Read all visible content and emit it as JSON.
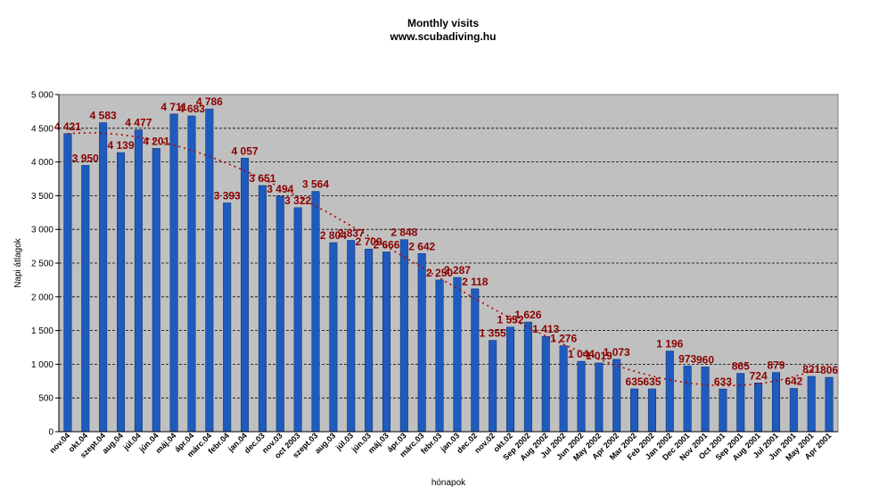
{
  "chart_data": {
    "type": "bar",
    "title": "Monthly visits",
    "subtitle": "www.scubadiving.hu",
    "xlabel": "hónapok",
    "ylabel": "Napi átlagok",
    "ylim": [
      0,
      5000
    ],
    "yticks": [
      "0",
      "500",
      "1 000",
      "1 500",
      "2 000",
      "2 500",
      "3 000",
      "3 500",
      "4 000",
      "4 500",
      "5 000"
    ],
    "grid": true,
    "trendline": "dotted, dark red",
    "colors": {
      "bar": "#1f5bbd",
      "plot_bg": "#c0c0c0",
      "label": "#8b0000",
      "trend": "#b00000"
    },
    "categories": [
      "nov.04",
      "okt.04",
      "szept.04",
      "aug.04",
      "júl.04",
      "jún.04",
      "máj.04",
      "ápr.04",
      "márc.04",
      "febr.04",
      "jan.04",
      "dec.03",
      "nov.03",
      "oct 2003",
      "szept.03",
      "aug.03",
      "júl.03",
      "jún.03",
      "máj.03",
      "ápr.03",
      "márc.03",
      "febr.03",
      "jan.03",
      "dec.02",
      "nov.02",
      "okt.02",
      "Sep 2002",
      "Aug 2002",
      "Jul 2002",
      "Jun 2002",
      "May 2002",
      "Apr 2002",
      "Mar 2002",
      "Feb 2002",
      "Jan 2002",
      "Dec 2001",
      "Nov 2001",
      "Oct 2001",
      "Sep 2001",
      "Aug 2001",
      "Jul 2001",
      "Jun 2001",
      "May 2001",
      "Apr 2001"
    ],
    "values": [
      4421,
      3950,
      4583,
      4139,
      4477,
      4201,
      4711,
      4683,
      4786,
      3393,
      4057,
      3651,
      3494,
      3322,
      3564,
      2804,
      2837,
      2709,
      2666,
      2848,
      2642,
      2250,
      2287,
      2118,
      1355,
      1552,
      1626,
      1413,
      1276,
      1044,
      1019,
      1073,
      635,
      635,
      1196,
      973,
      960,
      633,
      865,
      724,
      879,
      642,
      821,
      806
    ],
    "value_labels": [
      "4 421",
      "3 950",
      "4 583",
      "4 139",
      "4 477",
      "4 201",
      "4 711",
      "4 683",
      "4 786",
      "3 393",
      "4 057",
      "3 651",
      "3 494",
      "3 322",
      "3 564",
      "2 804",
      "2 837",
      "2 709",
      "2 666",
      "2 848",
      "2 642",
      "2 250",
      "2 287",
      "2 118",
      "1 355",
      "1 552",
      "1 626",
      "1 413",
      "1 276",
      "1 044",
      "1 019",
      "1 073",
      "635",
      "635",
      "1 196",
      "973",
      "960",
      "633",
      "865",
      "724",
      "879",
      "642",
      "821",
      "806"
    ]
  }
}
